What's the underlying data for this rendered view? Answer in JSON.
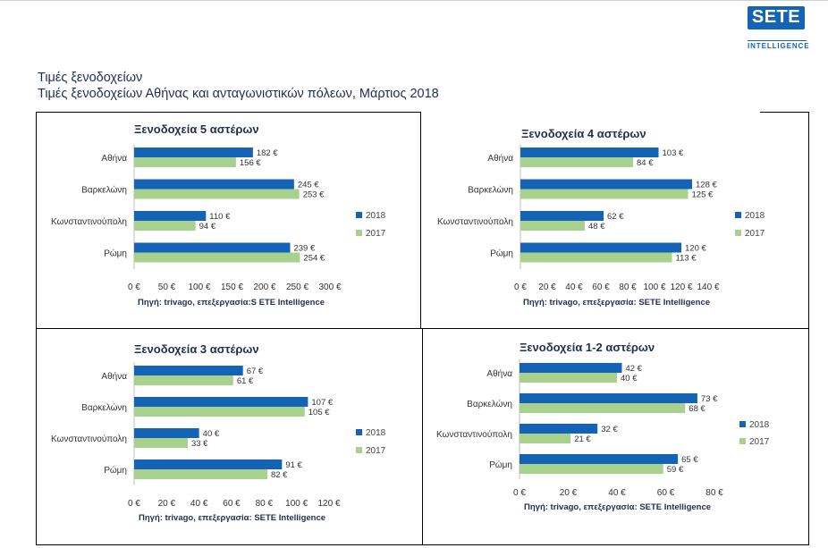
{
  "header": {
    "logo_text": "SETE",
    "logo_subtitle": "INTELLIGENCE",
    "title": "Τιμές ξενοδοχείων",
    "subtitle": "Τιμές ξενοδοχείων Αθήνας και ανταγωνιστικών πόλεων, Μάρτιος 2018"
  },
  "colors": {
    "series_2018": "#1563b5",
    "series_2017": "#a9d18e"
  },
  "chart_data": [
    {
      "type": "bar",
      "orientation": "horizontal",
      "title": "Ξενοδοχεία 5 αστέρων",
      "categories": [
        "Αθήνα",
        "Βαρκελώνη",
        "Κωνσταντινούπολη",
        "Ρώμη"
      ],
      "series": [
        {
          "name": "2018",
          "values": [
            182,
            245,
            110,
            239
          ],
          "labels": [
            "182 €",
            "245 €",
            "110 €",
            "239 €"
          ]
        },
        {
          "name": "2017",
          "values": [
            156,
            253,
            94,
            254
          ],
          "labels": [
            "156 €",
            "253 €",
            "94 €",
            "254 €"
          ]
        }
      ],
      "xlim": [
        0,
        300
      ],
      "ticks": [
        "0 €",
        "50 €",
        "100 €",
        "150 €",
        "200 €",
        "250 €",
        "300 €"
      ],
      "legend": "right",
      "source": "Πηγή: trivago, επεξεργασία:S ETE Intelligence"
    },
    {
      "type": "bar",
      "orientation": "horizontal",
      "title": "Ξενοδοχεία 4 αστέρων",
      "categories": [
        "Αθήνα",
        "Βαρκελώνη",
        "Κωνσταντινούπολη",
        "Ρώμη"
      ],
      "series": [
        {
          "name": "2018",
          "values": [
            103,
            128,
            62,
            120
          ],
          "labels": [
            "103 €",
            "128 €",
            "62 €",
            "120 €"
          ]
        },
        {
          "name": "2017",
          "values": [
            84,
            125,
            48,
            113
          ],
          "labels": [
            "84 €",
            "125 €",
            "48 €",
            "113 €"
          ]
        }
      ],
      "xlim": [
        0,
        140
      ],
      "ticks": [
        "0 €",
        "20 €",
        "40 €",
        "60 €",
        "80 €",
        "100 €",
        "120 €",
        "140 €"
      ],
      "legend": "right",
      "source": "Πηγή: trivago, επεξεργασία: SETE Intelligence"
    },
    {
      "type": "bar",
      "orientation": "horizontal",
      "title": "Ξενοδοχεία 3 αστέρων",
      "categories": [
        "Αθήνα",
        "Βαρκελώνη",
        "Κωνσταντινούπολη",
        "Ρώμη"
      ],
      "series": [
        {
          "name": "2018",
          "values": [
            67,
            107,
            40,
            91
          ],
          "labels": [
            "67 €",
            "107 €",
            "40 €",
            "91 €"
          ]
        },
        {
          "name": "2017",
          "values": [
            61,
            105,
            33,
            82
          ],
          "labels": [
            "61 €",
            "105 €",
            "33 €",
            "82 €"
          ]
        }
      ],
      "xlim": [
        0,
        120
      ],
      "ticks": [
        "0 €",
        "20 €",
        "40 €",
        "60 €",
        "80 €",
        "100 €",
        "120 €"
      ],
      "legend": "right",
      "source": "Πηγή: trivago, επεξεργασία: SETE Intelligence"
    },
    {
      "type": "bar",
      "orientation": "horizontal",
      "title": "Ξενοδοχεία 1-2 αστέρων",
      "categories": [
        "Αθήνα",
        "Βαρκελώνη",
        "Κωνσταντινούπολη",
        "Ρώμη"
      ],
      "series": [
        {
          "name": "2018",
          "values": [
            42,
            73,
            32,
            65
          ],
          "labels": [
            "42 €",
            "73 €",
            "32 €",
            "65 €"
          ]
        },
        {
          "name": "2017",
          "values": [
            40,
            68,
            21,
            59
          ],
          "labels": [
            "40 €",
            "68 €",
            "21 €",
            "59 €"
          ]
        }
      ],
      "xlim": [
        0,
        80
      ],
      "ticks": [
        "0 €",
        "20 €",
        "40 €",
        "60 €",
        "80 €"
      ],
      "legend": "right",
      "source": "Πηγή: trivago, επεξεργασία: SETE Intelligence"
    }
  ]
}
